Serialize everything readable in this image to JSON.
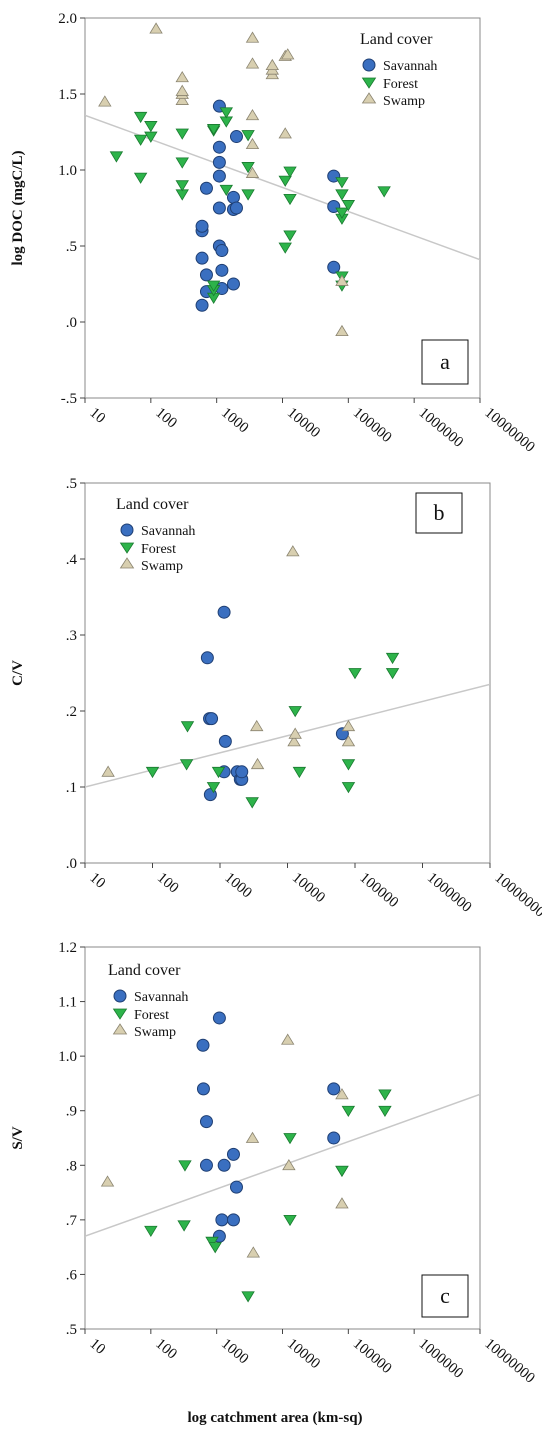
{
  "figure": {
    "xlabel": "log catchment area (km-sq)"
  },
  "legend": {
    "title": "Land cover",
    "items": [
      {
        "name": "Savannah",
        "marker": "circle",
        "color": "#3a6fc0"
      },
      {
        "name": "Forest",
        "marker": "triangle-down",
        "color": "#2db34a"
      },
      {
        "name": "Swamp",
        "marker": "triangle-up",
        "color": "#d8cfb0"
      }
    ]
  },
  "trendline_color": "#c8c8c8",
  "chart_data": [
    {
      "type": "scatter",
      "panel": "a",
      "ylabel": "log DOC (mgC/L)",
      "xscale": "log",
      "xlim": [
        10,
        10000000
      ],
      "ylim": [
        -0.5,
        2.0
      ],
      "x_tick_labels": [
        "10",
        "100",
        "1000",
        "10000",
        "100000",
        "1000000",
        "10000000"
      ],
      "y_ticks": [
        -0.5,
        0.0,
        0.5,
        1.0,
        1.5,
        2.0
      ],
      "y_tick_labels": [
        "-.5",
        ".0",
        ".5",
        "1.0",
        "1.5",
        "2.0"
      ],
      "legend_position": "top-right",
      "trendline": [
        [
          10,
          1.36
        ],
        [
          10000000,
          0.41
        ]
      ],
      "series": [
        {
          "name": "Savannah",
          "points": [
            [
              600,
              0.11
            ],
            [
              600,
              0.42
            ],
            [
              600,
              0.6
            ],
            [
              600,
              0.63
            ],
            [
              700,
              0.2
            ],
            [
              700,
              0.31
            ],
            [
              700,
              0.88
            ],
            [
              1100,
              0.5
            ],
            [
              1100,
              0.75
            ],
            [
              1100,
              0.96
            ],
            [
              1100,
              1.05
            ],
            [
              1100,
              1.15
            ],
            [
              1100,
              1.42
            ],
            [
              1200,
              0.22
            ],
            [
              1200,
              0.34
            ],
            [
              1200,
              0.47
            ],
            [
              1800,
              0.25
            ],
            [
              1800,
              0.74
            ],
            [
              1800,
              0.82
            ],
            [
              2000,
              0.75
            ],
            [
              2000,
              1.22
            ],
            [
              60000,
              0.36
            ],
            [
              60000,
              0.76
            ],
            [
              60000,
              0.96
            ]
          ]
        },
        {
          "name": "Forest",
          "points": [
            [
              30,
              1.09
            ],
            [
              70,
              0.95
            ],
            [
              70,
              1.2
            ],
            [
              70,
              1.35
            ],
            [
              100,
              1.22
            ],
            [
              100,
              1.29
            ],
            [
              300,
              0.84
            ],
            [
              300,
              0.9
            ],
            [
              300,
              1.05
            ],
            [
              300,
              1.24
            ],
            [
              900,
              0.16
            ],
            [
              900,
              0.21
            ],
            [
              900,
              0.24
            ],
            [
              900,
              1.26
            ],
            [
              900,
              1.27
            ],
            [
              1400,
              0.87
            ],
            [
              1400,
              1.32
            ],
            [
              1400,
              1.38
            ],
            [
              3000,
              0.84
            ],
            [
              3000,
              1.02
            ],
            [
              3000,
              1.23
            ],
            [
              11000,
              0.49
            ],
            [
              11000,
              0.93
            ],
            [
              13000,
              0.57
            ],
            [
              13000,
              0.81
            ],
            [
              13000,
              0.99
            ],
            [
              80000,
              0.24
            ],
            [
              80000,
              0.3
            ],
            [
              80000,
              0.68
            ],
            [
              80000,
              0.72
            ],
            [
              80000,
              0.84
            ],
            [
              80000,
              0.92
            ],
            [
              100000,
              0.77
            ],
            [
              350000,
              0.86
            ]
          ]
        },
        {
          "name": "Swamp",
          "points": [
            [
              20,
              1.45
            ],
            [
              120,
              1.93
            ],
            [
              300,
              1.46
            ],
            [
              300,
              1.5
            ],
            [
              300,
              1.52
            ],
            [
              300,
              1.61
            ],
            [
              3500,
              0.98
            ],
            [
              3500,
              1.17
            ],
            [
              3500,
              1.36
            ],
            [
              3500,
              1.7
            ],
            [
              3500,
              1.87
            ],
            [
              7000,
              1.63
            ],
            [
              7000,
              1.66
            ],
            [
              7000,
              1.69
            ],
            [
              11000,
              1.24
            ],
            [
              11000,
              1.75
            ],
            [
              12000,
              1.76
            ],
            [
              80000,
              -0.06
            ],
            [
              80000,
              0.27
            ]
          ]
        }
      ]
    },
    {
      "type": "scatter",
      "panel": "b",
      "ylabel": "C/V",
      "xscale": "log",
      "xlim": [
        10,
        10000000
      ],
      "ylim": [
        0.0,
        0.5
      ],
      "x_tick_labels": [
        "10",
        "100",
        "1000",
        "10000",
        "100000",
        "1000000",
        "10000000"
      ],
      "y_ticks": [
        0.0,
        0.1,
        0.2,
        0.3,
        0.4,
        0.5
      ],
      "y_tick_labels": [
        ".0",
        ".1",
        ".2",
        ".3",
        ".4",
        ".5"
      ],
      "legend_position": "top-left",
      "trendline": [
        [
          10,
          0.1
        ],
        [
          10000000,
          0.235
        ]
      ],
      "series": [
        {
          "name": "Savannah",
          "points": [
            [
              650,
              0.27
            ],
            [
              700,
              0.19
            ],
            [
              720,
              0.09
            ],
            [
              750,
              0.19
            ],
            [
              1150,
              0.33
            ],
            [
              1150,
              0.12
            ],
            [
              1200,
              0.16
            ],
            [
              1800,
              0.12
            ],
            [
              2000,
              0.11
            ],
            [
              2100,
              0.11
            ],
            [
              2100,
              0.12
            ],
            [
              65000,
              0.17
            ]
          ]
        },
        {
          "name": "Forest",
          "points": [
            [
              100,
              0.12
            ],
            [
              320,
              0.13
            ],
            [
              330,
              0.18
            ],
            [
              800,
              0.1
            ],
            [
              950,
              0.12
            ],
            [
              3000,
              0.08
            ],
            [
              13000,
              0.2
            ],
            [
              15000,
              0.12
            ],
            [
              80000,
              0.1
            ],
            [
              80000,
              0.13
            ],
            [
              100000,
              0.25
            ],
            [
              360000,
              0.25
            ],
            [
              360000,
              0.27
            ]
          ]
        },
        {
          "name": "Swamp",
          "points": [
            [
              22,
              0.12
            ],
            [
              3500,
              0.18
            ],
            [
              3600,
              0.13
            ],
            [
              12000,
              0.41
            ],
            [
              12500,
              0.16
            ],
            [
              13000,
              0.17
            ],
            [
              80000,
              0.16
            ],
            [
              80000,
              0.18
            ]
          ]
        }
      ]
    },
    {
      "type": "scatter",
      "panel": "c",
      "ylabel": "S/V",
      "xscale": "log",
      "xlim": [
        10,
        10000000
      ],
      "ylim": [
        0.5,
        1.2
      ],
      "x_tick_labels": [
        "10",
        "100",
        "1000",
        "10000",
        "100000",
        "1000000",
        "10000000"
      ],
      "y_ticks": [
        0.5,
        0.6,
        0.7,
        0.8,
        0.9,
        1.0,
        1.1,
        1.2
      ],
      "y_tick_labels": [
        ".5",
        ".6",
        ".7",
        ".8",
        ".9",
        "1.0",
        "1.1",
        "1.2"
      ],
      "legend_position": "top-left",
      "trendline": [
        [
          10,
          0.67
        ],
        [
          10000000,
          0.93
        ]
      ],
      "series": [
        {
          "name": "Savannah",
          "points": [
            [
              620,
              1.02
            ],
            [
              630,
              0.94
            ],
            [
              700,
              0.88
            ],
            [
              700,
              0.8
            ],
            [
              1100,
              1.07
            ],
            [
              1100,
              0.67
            ],
            [
              1200,
              0.7
            ],
            [
              1300,
              0.8
            ],
            [
              1800,
              0.82
            ],
            [
              1800,
              0.7
            ],
            [
              2000,
              0.76
            ],
            [
              60000,
              0.94
            ],
            [
              60000,
              0.85
            ]
          ]
        },
        {
          "name": "Forest",
          "points": [
            [
              100,
              0.68
            ],
            [
              320,
              0.69
            ],
            [
              330,
              0.8
            ],
            [
              850,
              0.66
            ],
            [
              950,
              0.65
            ],
            [
              3000,
              0.56
            ],
            [
              13000,
              0.85
            ],
            [
              13000,
              0.7
            ],
            [
              80000,
              0.79
            ],
            [
              80000,
              0.79
            ],
            [
              100000,
              0.9
            ],
            [
              360000,
              0.93
            ],
            [
              360000,
              0.9
            ]
          ]
        },
        {
          "name": "Swamp",
          "points": [
            [
              22,
              0.77
            ],
            [
              3500,
              0.85
            ],
            [
              3600,
              0.64
            ],
            [
              12000,
              1.03
            ],
            [
              12500,
              0.8
            ],
            [
              80000,
              0.93
            ],
            [
              80000,
              0.73
            ]
          ]
        }
      ]
    }
  ]
}
